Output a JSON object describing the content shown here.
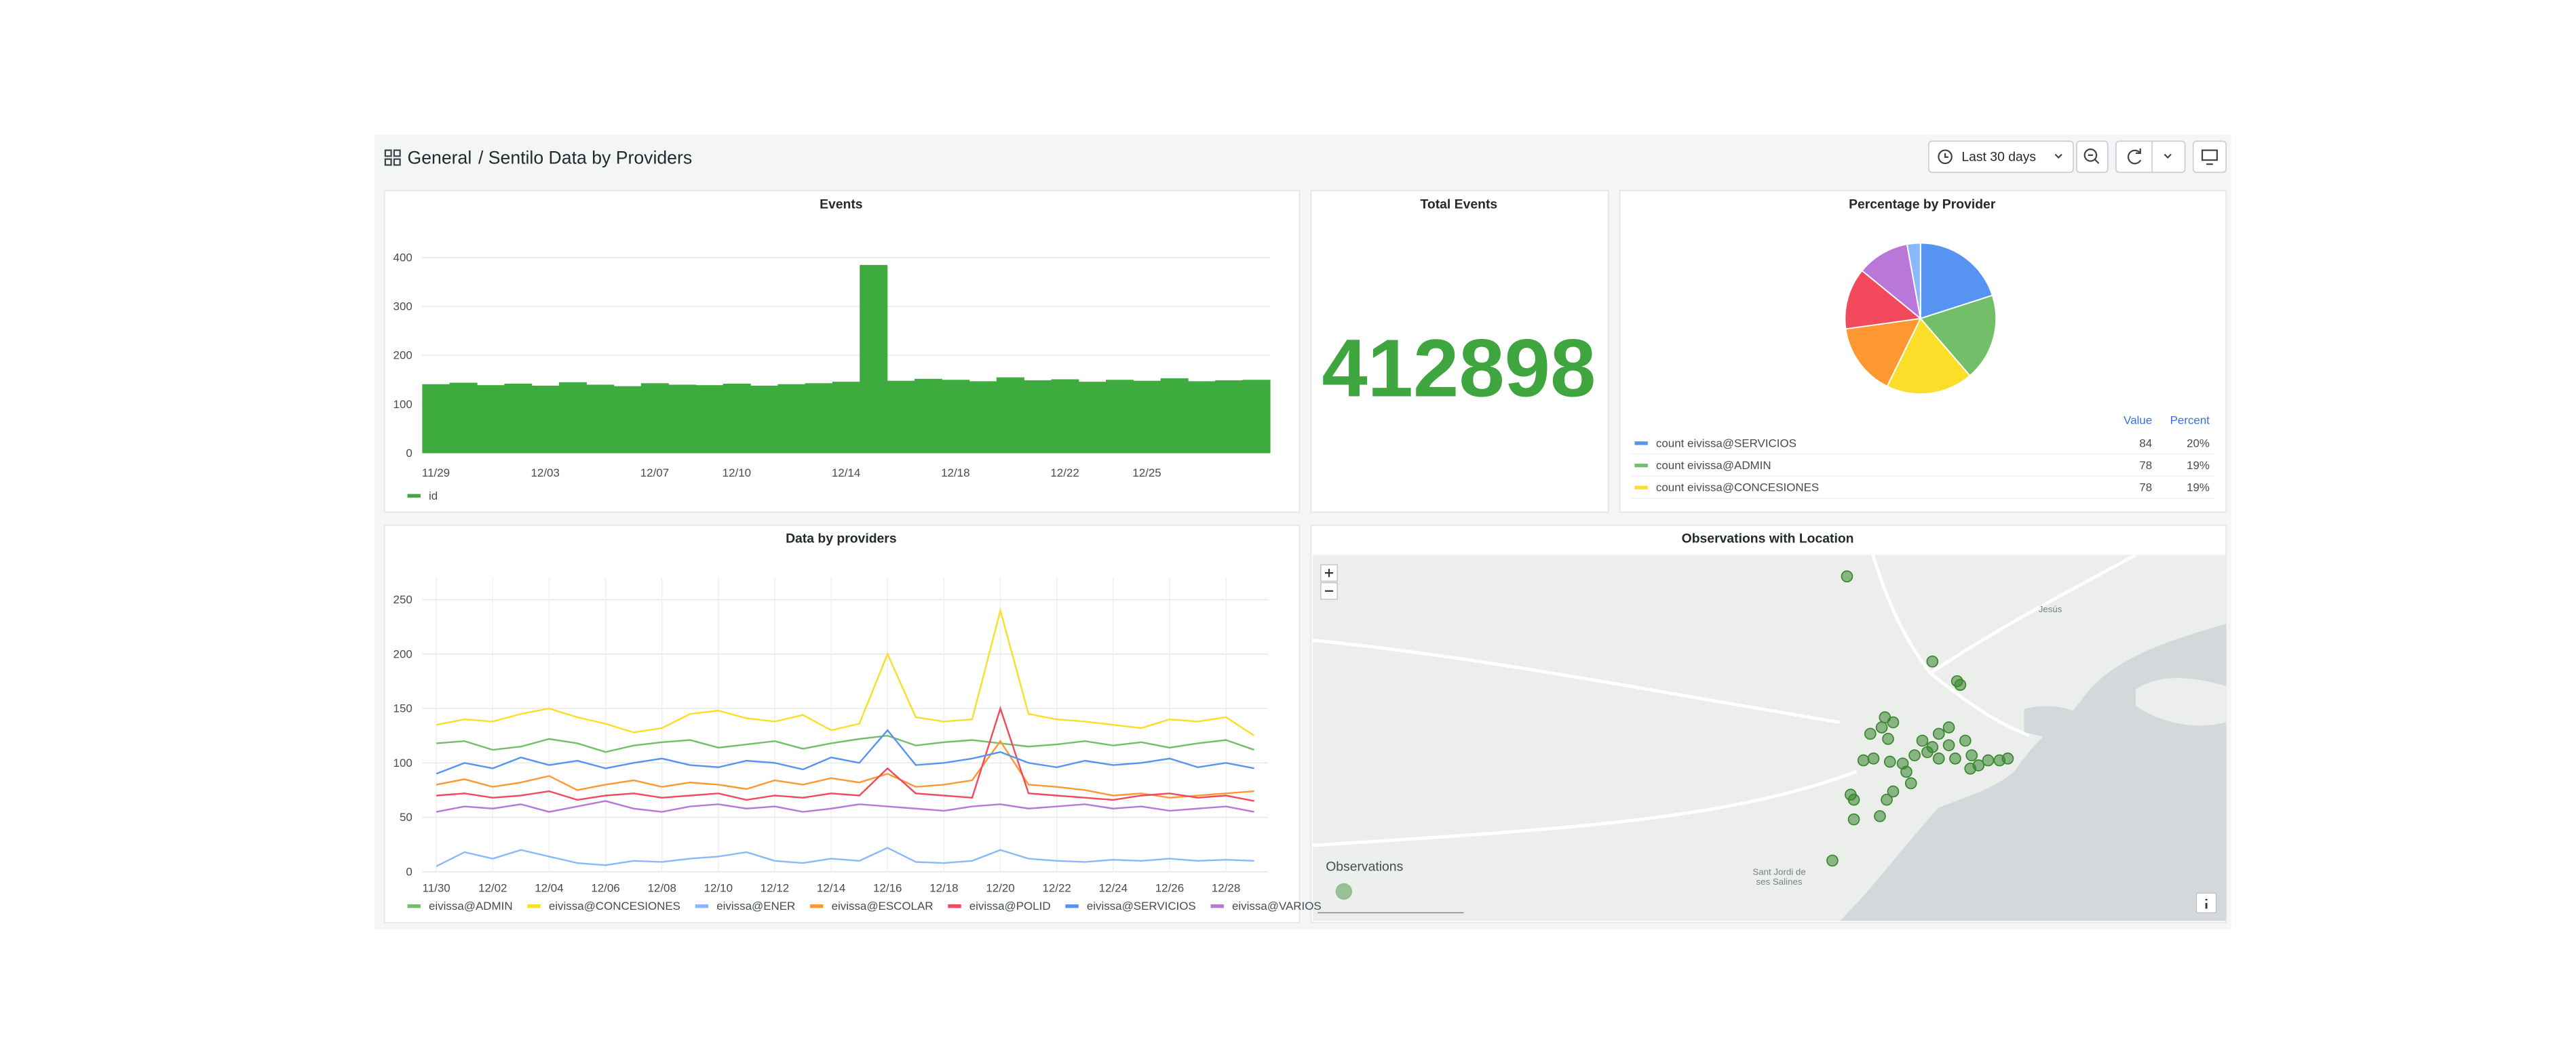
{
  "header": {
    "folder": "General",
    "title": "/ Sentilo Data by Providers",
    "time_range": "Last 30 days"
  },
  "stat": {
    "title": "Total Events",
    "value": 412898
  },
  "chart_data": [
    {
      "type": "bar",
      "title": "Events",
      "x": [
        "11/29",
        "11/30",
        "12/01",
        "12/02",
        "12/03",
        "12/04",
        "12/05",
        "12/06",
        "12/07",
        "12/08",
        "12/09",
        "12/10",
        "12/11",
        "12/12",
        "12/13",
        "12/14",
        "12/15",
        "12/16",
        "12/17",
        "12/18",
        "12/19",
        "12/20",
        "12/21",
        "12/22",
        "12/23",
        "12/24",
        "12/25",
        "12/26",
        "12/27",
        "12/28",
        "12/29"
      ],
      "values": [
        141,
        144,
        139,
        142,
        138,
        145,
        140,
        137,
        143,
        140,
        139,
        142,
        138,
        141,
        143,
        146,
        385,
        148,
        152,
        150,
        147,
        155,
        149,
        151,
        146,
        150,
        148,
        153,
        147,
        149,
        150
      ],
      "color": "#3dab3d",
      "legend": "id",
      "ylim": [
        0,
        440
      ],
      "yticks": [
        0,
        100,
        200,
        300,
        400
      ],
      "xticks": [
        "11/29",
        "12/03",
        "12/07",
        "12/10",
        "12/14",
        "12/18",
        "12/22",
        "12/25"
      ],
      "grid": true
    },
    {
      "type": "pie",
      "title": "Percentage by Provider",
      "categories": [
        "count eivissa@SERVICIOS",
        "count eivissa@ADMIN",
        "count eivissa@CONCESIONES",
        null,
        null,
        null,
        null
      ],
      "values": [
        84,
        78,
        78,
        65,
        55,
        47,
        12
      ],
      "value_labels": [
        "20%",
        "19%",
        "19%",
        null,
        null,
        null,
        null
      ],
      "colors": [
        "#5794f2",
        "#73bf69",
        "#fade2a",
        "#ff9830",
        "#f2495c",
        "#b877d9",
        "#8ab8ff"
      ],
      "legend_headers": [
        "Value",
        "Percent"
      ]
    },
    {
      "type": "line",
      "title": "Data by providers",
      "x": [
        "11/30",
        "12/01",
        "12/02",
        "12/03",
        "12/04",
        "12/05",
        "12/06",
        "12/07",
        "12/08",
        "12/09",
        "12/10",
        "12/11",
        "12/12",
        "12/13",
        "12/14",
        "12/15",
        "12/16",
        "12/17",
        "12/18",
        "12/19",
        "12/20",
        "12/21",
        "12/22",
        "12/23",
        "12/24",
        "12/25",
        "12/26",
        "12/27",
        "12/28",
        "12/29"
      ],
      "series": [
        {
          "name": "eivissa@ADMIN",
          "color": "#73bf69",
          "values": [
            118,
            120,
            112,
            115,
            122,
            118,
            110,
            116,
            119,
            121,
            114,
            117,
            120,
            113,
            118,
            122,
            125,
            116,
            119,
            121,
            118,
            115,
            117,
            120,
            116,
            119,
            114,
            118,
            121,
            112
          ]
        },
        {
          "name": "eivissa@CONCESIONES",
          "color": "#fade2a",
          "values": [
            135,
            140,
            138,
            145,
            150,
            142,
            136,
            128,
            132,
            145,
            148,
            141,
            138,
            144,
            130,
            136,
            200,
            142,
            138,
            140,
            240,
            145,
            140,
            138,
            135,
            132,
            140,
            138,
            142,
            125
          ]
        },
        {
          "name": "eivissa@ENER",
          "color": "#8ab8ff",
          "values": [
            5,
            18,
            12,
            20,
            14,
            8,
            6,
            10,
            9,
            12,
            14,
            18,
            10,
            8,
            12,
            10,
            22,
            9,
            8,
            10,
            20,
            12,
            10,
            9,
            11,
            10,
            12,
            10,
            11,
            10
          ]
        },
        {
          "name": "eivissa@ESCOLAR",
          "color": "#ff9830",
          "values": [
            80,
            85,
            78,
            82,
            88,
            75,
            80,
            84,
            78,
            82,
            80,
            76,
            84,
            80,
            86,
            82,
            90,
            78,
            80,
            84,
            120,
            80,
            78,
            75,
            70,
            72,
            68,
            70,
            72,
            74
          ]
        },
        {
          "name": "eivissa@POLID",
          "color": "#f2495c",
          "values": [
            70,
            72,
            68,
            70,
            74,
            66,
            70,
            72,
            68,
            70,
            72,
            66,
            70,
            68,
            72,
            70,
            95,
            72,
            70,
            68,
            150,
            72,
            70,
            68,
            66,
            70,
            72,
            68,
            70,
            65
          ]
        },
        {
          "name": "eivissa@SERVICIOS",
          "color": "#5794f2",
          "values": [
            90,
            100,
            95,
            105,
            98,
            102,
            95,
            100,
            104,
            98,
            96,
            102,
            100,
            94,
            105,
            100,
            130,
            98,
            100,
            104,
            110,
            100,
            96,
            102,
            98,
            100,
            104,
            96,
            100,
            95
          ]
        },
        {
          "name": "eivissa@VARIOS",
          "color": "#b877d9",
          "values": [
            55,
            60,
            58,
            62,
            55,
            60,
            65,
            58,
            55,
            60,
            62,
            58,
            60,
            55,
            58,
            62,
            60,
            58,
            56,
            60,
            62,
            58,
            60,
            62,
            58,
            60,
            56,
            58,
            60,
            55
          ]
        }
      ],
      "ylim": [
        0,
        270
      ],
      "yticks": [
        0,
        50,
        100,
        150,
        200,
        250
      ],
      "xticks": [
        "11/30",
        "12/02",
        "12/04",
        "12/06",
        "12/08",
        "12/10",
        "12/12",
        "12/14",
        "12/16",
        "12/18",
        "12/20",
        "12/22",
        "12/24",
        "12/26",
        "12/28"
      ],
      "grid": true
    },
    {
      "type": "map",
      "title": "Observations with Location",
      "series": [
        {
          "name": "Observations",
          "color": "#37872d",
          "x": [
            1.417,
            1.4357,
            1.4411,
            1.4418,
            1.4253,
            1.4271,
            1.4246,
            1.4221,
            1.426,
            1.4393,
            1.4371,
            1.4335,
            1.4357,
            1.4393,
            1.4429,
            1.4443,
            1.4407,
            1.4371,
            1.4346,
            1.4318,
            1.4292,
            1.4264,
            1.4228,
            1.4206,
            1.43,
            1.431,
            1.4458,
            1.4479,
            1.4504,
            1.4522,
            1.444,
            1.4271,
            1.4257,
            1.4185,
            1.4178,
            1.4242,
            1.4185,
            1.4138
          ],
          "y": [
            38.9453,
            38.9267,
            38.9224,
            38.9216,
            38.9145,
            38.9134,
            38.9123,
            38.9109,
            38.9098,
            38.9123,
            38.9109,
            38.9094,
            38.908,
            38.9084,
            38.9094,
            38.9062,
            38.9055,
            38.9055,
            38.9069,
            38.9062,
            38.9044,
            38.9048,
            38.9055,
            38.9051,
            38.9026,
            38.9001,
            38.904,
            38.9051,
            38.9051,
            38.9055,
            38.9033,
            38.8983,
            38.8965,
            38.8965,
            38.8976,
            38.8929,
            38.8922,
            38.8832
          ]
        }
      ],
      "xlim": [
        1.3,
        1.5
      ],
      "ylim": [
        38.87,
        38.95
      ],
      "places": [
        "Jesús",
        "Sant Jordi de",
        "ses Salines"
      ]
    }
  ]
}
